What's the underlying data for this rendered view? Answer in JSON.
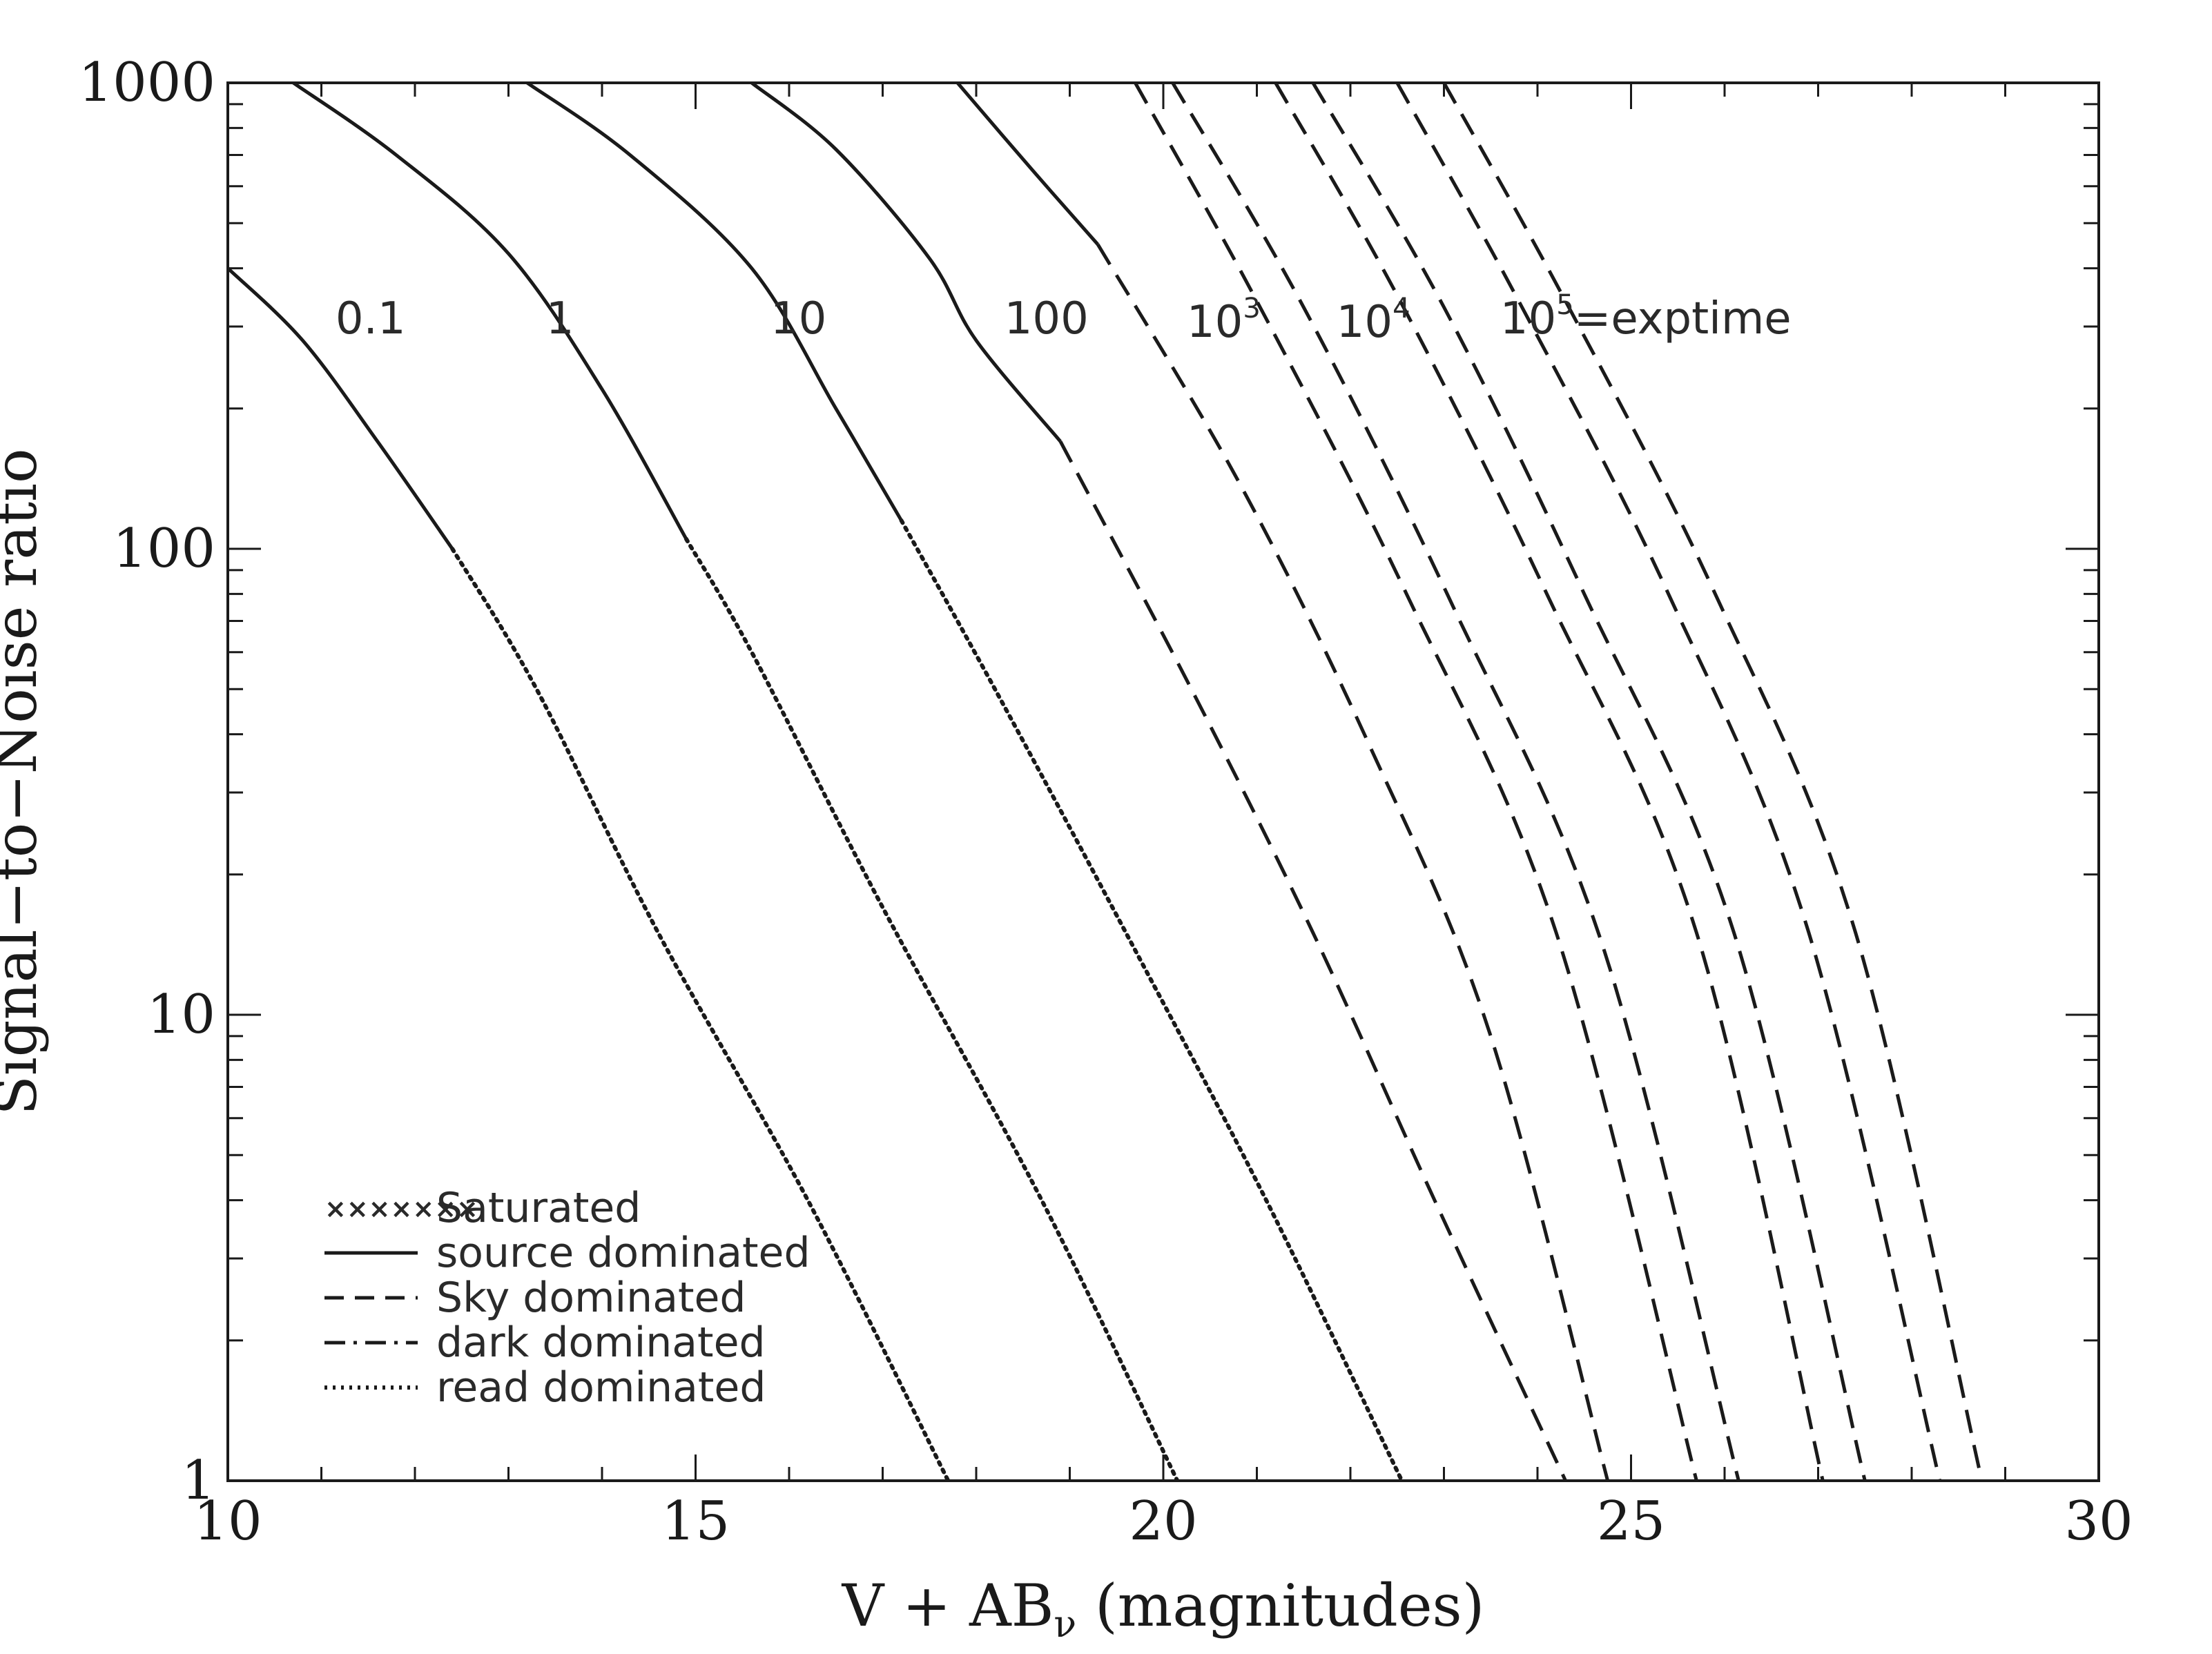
{
  "chart_data": {
    "type": "line",
    "title": "",
    "xlabel": "V + AB",
    "xlabel_sub": "ν",
    "xlabel_suffix": " (magnitudes)",
    "ylabel": "Signal−to−Noise ratio",
    "xlim": [
      10,
      30
    ],
    "ylim": [
      1,
      1000
    ],
    "y_scale": "log",
    "grid": false,
    "x_tick_labels": [
      "10",
      "15",
      "20",
      "25",
      "30"
    ],
    "y_tick_labels": [
      "1",
      "10",
      "100",
      "1000"
    ],
    "legend_position": "bottom-left",
    "legend": [
      {
        "symbol": "×××××××",
        "label": "Saturated",
        "style": "crosses"
      },
      {
        "label": "source dominated",
        "style": "solid"
      },
      {
        "label": "Sky dominated",
        "style": "dashed"
      },
      {
        "label": "dark dominated",
        "style": "dashdot"
      },
      {
        "label": "read dominated",
        "style": "dotted"
      }
    ],
    "curve_labels": [
      {
        "text": "0.1",
        "x": 11.15,
        "y": 290
      },
      {
        "text": "1",
        "x": 13.4,
        "y": 290
      },
      {
        "text": "10",
        "x": 15.8,
        "y": 290
      },
      {
        "text": "100",
        "x": 18.3,
        "y": 290
      },
      {
        "text": "10",
        "sup": "3",
        "x": 20.25,
        "y": 285
      },
      {
        "text": "10",
        "sup": "4",
        "x": 21.85,
        "y": 285
      },
      {
        "text": "10",
        "sup": "5",
        "suffix": "=exptime",
        "x": 23.6,
        "y": 290
      }
    ],
    "series": [
      {
        "segments": [
          {
            "style": "solid",
            "x": [
              10.0,
              10.8,
              11.6,
              12.4
            ],
            "y": [
              400,
              280,
              170,
              100
            ]
          },
          {
            "style": "dotted",
            "x": [
              12.4,
              13.3,
              14.6,
              16.2,
              17.7
            ],
            "y": [
              100,
              50,
              15,
              4,
              1
            ]
          }
        ]
      },
      {
        "segments": [
          {
            "style": "solid",
            "x": [
              10.7,
              11.8,
              13.0,
              14.0,
              14.9
            ],
            "y": [
              1000,
              700,
              430,
              220,
              105
            ]
          },
          {
            "style": "dotted",
            "x": [
              14.9,
              15.6,
              17.0,
              18.7,
              20.15
            ],
            "y": [
              105,
              60,
              17,
              4,
              1
            ]
          }
        ]
      },
      {
        "segments": [
          {
            "style": "solid",
            "x": [
              13.2,
              14.3,
              15.6,
              16.5,
              17.2
            ],
            "y": [
              1000,
              700,
              400,
              200,
              115
            ]
          },
          {
            "style": "dotted",
            "x": [
              17.2,
              18.2,
              19.6,
              21.1,
              22.55
            ],
            "y": [
              115,
              50,
              15,
              4,
              1
            ]
          }
        ]
      },
      {
        "segments": [
          {
            "style": "solid",
            "x": [
              15.6,
              16.5,
              17.5,
              18.0,
              18.9
            ],
            "y": [
              1000,
              720,
              420,
              280,
              170
            ]
          },
          {
            "style": "dashed",
            "x": [
              18.9,
              20.3,
              21.6,
              22.9,
              24.3
            ],
            "y": [
              170,
              50,
              15,
              4,
              1
            ]
          }
        ]
      },
      {
        "segments": [
          {
            "style": "solid",
            "x": [
              17.8,
              18.6,
              19.3
            ],
            "y": [
              1000,
              650,
              450
            ]
          },
          {
            "style": "dashed",
            "x": [
              19.3,
              20.8,
              22.2,
              23.5,
              24.75
            ],
            "y": [
              450,
              140,
              38,
              9,
              1
            ]
          }
        ]
      },
      {
        "segments": [
          {
            "style": "dashed",
            "x": [
              19.7,
              21.0,
              22.6,
              24.2,
              25.7
            ],
            "y": [
              1000,
              340,
              80,
              15,
              1
            ]
          }
        ]
      },
      {
        "segments": [
          {
            "style": "dashed",
            "x": [
              20.1,
              21.5,
              23.1,
              24.7,
              26.15
            ],
            "y": [
              1000,
              330,
              75,
              14,
              1
            ]
          }
        ]
      },
      {
        "segments": [
          {
            "style": "dashed",
            "x": [
              21.2,
              22.5,
              24.1,
              25.7,
              27.05
            ],
            "y": [
              1000,
              350,
              80,
              15,
              1
            ]
          }
        ]
      },
      {
        "segments": [
          {
            "style": "dashed",
            "x": [
              21.6,
              23.0,
              24.5,
              26.1,
              27.5
            ],
            "y": [
              1000,
              330,
              80,
              15,
              1
            ]
          }
        ]
      },
      {
        "segments": [
          {
            "style": "dashed",
            "x": [
              22.5,
              23.8,
              25.4,
              26.9,
              28.3
            ],
            "y": [
              1000,
              340,
              80,
              15,
              1
            ]
          }
        ]
      },
      {
        "segments": [
          {
            "style": "dashed",
            "x": [
              23.0,
              24.3,
              25.9,
              27.4,
              28.75
            ],
            "y": [
              1000,
              340,
              80,
              15,
              1
            ]
          }
        ]
      }
    ]
  }
}
